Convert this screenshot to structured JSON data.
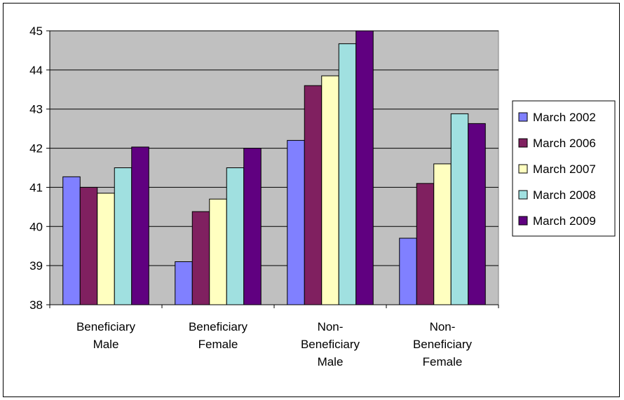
{
  "chart_data": {
    "type": "bar",
    "categories": [
      [
        "Beneficiary",
        "Male"
      ],
      [
        "Beneficiary",
        "Female"
      ],
      [
        "Non-",
        "Beneficiary",
        "Male"
      ],
      [
        "Non-",
        "Beneficiary",
        "Female"
      ]
    ],
    "series": [
      {
        "name": "March 2002",
        "color": "#8080ff",
        "values": [
          41.27,
          39.1,
          42.2,
          39.7
        ]
      },
      {
        "name": "March 2006",
        "color": "#802060",
        "values": [
          41.0,
          40.38,
          43.6,
          41.1
        ]
      },
      {
        "name": "March 2007",
        "color": "#ffffc0",
        "values": [
          40.85,
          40.7,
          43.85,
          41.6
        ]
      },
      {
        "name": "March 2008",
        "color": "#a0e0e0",
        "values": [
          41.5,
          41.5,
          44.67,
          42.88
        ]
      },
      {
        "name": "March 2009",
        "color": "#600080",
        "values": [
          42.03,
          42.0,
          45.07,
          42.63
        ]
      }
    ],
    "ylim": [
      38,
      45
    ],
    "yticks": [
      "38",
      "39",
      "40",
      "41",
      "42",
      "43",
      "44",
      "45"
    ],
    "grid": true,
    "plot_background": "#c0c0c0",
    "legend_position": "right"
  }
}
